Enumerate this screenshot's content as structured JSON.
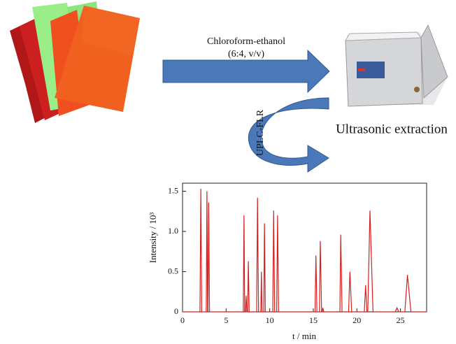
{
  "labels": {
    "solvent": "Chloroform-ethanol",
    "ratio": "(6:4, v/v)",
    "extraction": "Ultrasonic extraction",
    "analysis": "UPLC-FLR"
  },
  "chart_data": {
    "type": "line",
    "xlabel": "t / min",
    "ylabel": "Intensity / 10³",
    "color": "#d42020",
    "xlim": [
      0,
      28
    ],
    "ylim": [
      0,
      1.6
    ],
    "xticks": [
      0,
      5,
      10,
      15,
      20,
      25
    ],
    "yticks": [
      0,
      0.5,
      {
        "value": 1,
        "label": "1.0"
      },
      1.5
    ],
    "x": [
      0,
      2.0,
      2.1,
      2.2,
      2.72,
      2.8,
      2.88,
      2.92,
      3.0,
      3.1,
      6.97,
      7.05,
      7.13,
      7.22,
      7.3,
      7.38,
      7.47,
      7.55,
      7.65,
      8.5,
      8.6,
      8.72,
      8.98,
      9.05,
      9.12,
      9.32,
      9.4,
      9.5,
      10.35,
      10.45,
      10.57,
      10.8,
      10.9,
      11.02,
      15.2,
      15.3,
      15.42,
      15.7,
      15.8,
      15.95,
      16.02,
      16.1,
      16.2,
      18.05,
      18.15,
      18.3,
      19.05,
      19.2,
      19.4,
      20.85,
      21.0,
      21.15,
      21.25,
      21.5,
      21.85,
      24.4,
      24.6,
      24.8,
      25.5,
      25.8,
      26.2,
      28
    ],
    "values": [
      0,
      0,
      1.53,
      0,
      0,
      1.5,
      0,
      0,
      1.36,
      0,
      0,
      1.2,
      0,
      0,
      0.2,
      0,
      0,
      0.63,
      0,
      0,
      1.42,
      0,
      0,
      0.5,
      0,
      0,
      1.1,
      0,
      0,
      1.26,
      0,
      0,
      1.2,
      0,
      0,
      0.7,
      0,
      0,
      0.88,
      0,
      0,
      0.05,
      0,
      0,
      0.96,
      0,
      0,
      0.5,
      0,
      0,
      0.33,
      0,
      0,
      1.26,
      0,
      0,
      0.05,
      0,
      0,
      0.46,
      0,
      0
    ]
  }
}
